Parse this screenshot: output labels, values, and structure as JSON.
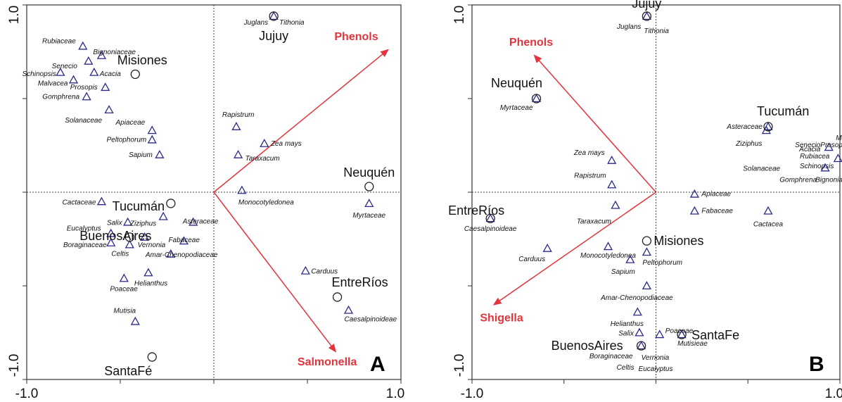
{
  "colors": {
    "arrow": "#e3343c",
    "triangle": "#2a2a8c",
    "frame": "#333333"
  },
  "chart_data": [
    {
      "type": "scatter",
      "panel": "A",
      "xlim": [
        -1.0,
        1.0
      ],
      "ylim": [
        -1.0,
        1.0
      ],
      "x_ticks": [
        "-1.0",
        "1.0"
      ],
      "y_ticks": [
        "1.0",
        "-1.0"
      ],
      "arrows": [
        {
          "name": "Phenols",
          "x": 0.93,
          "y": 0.76
        },
        {
          "name": "Salmonella",
          "x": 0.65,
          "y": -0.85
        }
      ],
      "sites": [
        {
          "name": "Jujuy",
          "x": 0.32,
          "y": 0.94
        },
        {
          "name": "Misiones",
          "x": -0.42,
          "y": 0.63
        },
        {
          "name": "Neuquén",
          "x": 0.83,
          "y": 0.03
        },
        {
          "name": "Tucumán",
          "x": -0.23,
          "y": -0.06
        },
        {
          "name": "BuenosAires",
          "x": -0.45,
          "y": -0.24
        },
        {
          "name": "EntreRíos",
          "x": 0.66,
          "y": -0.56
        },
        {
          "name": "SantaFé",
          "x": -0.33,
          "y": -0.88
        }
      ],
      "taxa": [
        {
          "name": "Juglans",
          "x": 0.32,
          "y": 0.94
        },
        {
          "name": "Tithonia",
          "x": 0.32,
          "y": 0.94
        },
        {
          "name": "Rubiaceae",
          "x": -0.7,
          "y": 0.78
        },
        {
          "name": "Senecio",
          "x": -0.67,
          "y": 0.7
        },
        {
          "name": "Bignoniaceae",
          "x": -0.6,
          "y": 0.73
        },
        {
          "name": "Schinopsis",
          "x": -0.82,
          "y": 0.64
        },
        {
          "name": "Acacia",
          "x": -0.64,
          "y": 0.64
        },
        {
          "name": "Malvacea",
          "x": -0.75,
          "y": 0.6
        },
        {
          "name": "Prosopis",
          "x": -0.58,
          "y": 0.56
        },
        {
          "name": "Gomphrena",
          "x": -0.68,
          "y": 0.51
        },
        {
          "name": "Solanaceae",
          "x": -0.56,
          "y": 0.44
        },
        {
          "name": "Apiaceae",
          "x": -0.33,
          "y": 0.33
        },
        {
          "name": "Peltophorum",
          "x": -0.33,
          "y": 0.28
        },
        {
          "name": "Sapium",
          "x": -0.29,
          "y": 0.2
        },
        {
          "name": "Rapistrum",
          "x": 0.12,
          "y": 0.35
        },
        {
          "name": "Zea mays",
          "x": 0.27,
          "y": 0.26
        },
        {
          "name": "Taraxacum",
          "x": 0.13,
          "y": 0.2
        },
        {
          "name": "Monocotyledonea",
          "x": 0.15,
          "y": 0.01
        },
        {
          "name": "Myrtaceae",
          "x": 0.83,
          "y": -0.06
        },
        {
          "name": "Cactaceae",
          "x": -0.6,
          "y": -0.05
        },
        {
          "name": "Salix",
          "x": -0.46,
          "y": -0.16
        },
        {
          "name": "Ziziphus",
          "x": -0.27,
          "y": -0.13
        },
        {
          "name": "Asteraceae",
          "x": -0.11,
          "y": -0.16
        },
        {
          "name": "Eucalyptus",
          "x": -0.55,
          "y": -0.22
        },
        {
          "name": "Vernonia",
          "x": -0.37,
          "y": -0.24
        },
        {
          "name": "Boraginaceae",
          "x": -0.55,
          "y": -0.27
        },
        {
          "name": "Celtis",
          "x": -0.45,
          "y": -0.28
        },
        {
          "name": "Fabaceae",
          "x": -0.16,
          "y": -0.26
        },
        {
          "name": "Amar-Chenopodiaceae",
          "x": -0.23,
          "y": -0.33
        },
        {
          "name": "Helianthus",
          "x": -0.35,
          "y": -0.43
        },
        {
          "name": "Poaceae",
          "x": -0.48,
          "y": -0.46
        },
        {
          "name": "Carduus",
          "x": 0.49,
          "y": -0.42
        },
        {
          "name": "Caesalpinoideae",
          "x": 0.72,
          "y": -0.63
        },
        {
          "name": "Mutisia",
          "x": -0.42,
          "y": -0.69
        }
      ]
    },
    {
      "type": "scatter",
      "panel": "B",
      "xlim": [
        -1.0,
        1.0
      ],
      "ylim": [
        -1.0,
        1.0
      ],
      "x_ticks": [
        "-1.0",
        "1.0"
      ],
      "y_ticks": [
        "1.0",
        "-1.0"
      ],
      "arrows": [
        {
          "name": "Phenols",
          "x": -0.66,
          "y": 0.73
        },
        {
          "name": "Shigella",
          "x": -0.88,
          "y": -0.6
        }
      ],
      "sites": [
        {
          "name": "Jujuy",
          "x": -0.05,
          "y": 0.94
        },
        {
          "name": "Neuquén",
          "x": -0.65,
          "y": 0.5
        },
        {
          "name": "Tucumán",
          "x": 0.61,
          "y": 0.35
        },
        {
          "name": "EntreRíos",
          "x": -0.9,
          "y": -0.14
        },
        {
          "name": "Misiones",
          "x": -0.05,
          "y": -0.26
        },
        {
          "name": "BuenosAires",
          "x": -0.08,
          "y": -0.82
        },
        {
          "name": "SantaFe",
          "x": 0.14,
          "y": -0.76
        }
      ],
      "taxa": [
        {
          "name": "Juglans",
          "x": -0.05,
          "y": 0.94
        },
        {
          "name": "Tithonia",
          "x": -0.05,
          "y": 0.94
        },
        {
          "name": "Myrtaceae",
          "x": -0.65,
          "y": 0.5
        },
        {
          "name": "Zea mays",
          "x": -0.24,
          "y": 0.17
        },
        {
          "name": "Rapistrum",
          "x": -0.24,
          "y": 0.04
        },
        {
          "name": "Taraxacum",
          "x": -0.22,
          "y": -0.07
        },
        {
          "name": "Caesalpinoideae",
          "x": -0.9,
          "y": -0.14
        },
        {
          "name": "Carduus",
          "x": -0.59,
          "y": -0.3
        },
        {
          "name": "Monocotyledonea",
          "x": -0.26,
          "y": -0.29
        },
        {
          "name": "Peltophorum",
          "x": -0.05,
          "y": -0.32
        },
        {
          "name": "Sapium",
          "x": -0.14,
          "y": -0.36
        },
        {
          "name": "Amar-Chenopodiaceae",
          "x": -0.05,
          "y": -0.5
        },
        {
          "name": "Helianthus",
          "x": -0.1,
          "y": -0.64
        },
        {
          "name": "Salix",
          "x": -0.09,
          "y": -0.75
        },
        {
          "name": "Poaceae",
          "x": 0.02,
          "y": -0.76
        },
        {
          "name": "Mutisieae",
          "x": 0.14,
          "y": -0.76
        },
        {
          "name": "Boraginaceae",
          "x": -0.08,
          "y": -0.82
        },
        {
          "name": "Vernonia",
          "x": -0.08,
          "y": -0.82
        },
        {
          "name": "Celtis",
          "x": -0.08,
          "y": -0.82
        },
        {
          "name": "Eucalyptus",
          "x": -0.08,
          "y": -0.82
        },
        {
          "name": "Asteraceae",
          "x": 0.61,
          "y": 0.35
        },
        {
          "name": "Ziziphus",
          "x": 0.6,
          "y": 0.33
        },
        {
          "name": "Malvaceae",
          "x": 0.94,
          "y": 0.24
        },
        {
          "name": "Acacia",
          "x": 0.94,
          "y": 0.24
        },
        {
          "name": "Prosopis",
          "x": 0.94,
          "y": 0.24
        },
        {
          "name": "Senecio",
          "x": 0.94,
          "y": 0.24
        },
        {
          "name": "Rubiacea",
          "x": 0.99,
          "y": 0.18
        },
        {
          "name": "Schinopsis",
          "x": 0.99,
          "y": 0.18
        },
        {
          "name": "Solanaceae",
          "x": 0.92,
          "y": 0.13
        },
        {
          "name": "Gomphrena",
          "x": 0.92,
          "y": 0.13
        },
        {
          "name": "Bignonia",
          "x": 0.92,
          "y": 0.13
        },
        {
          "name": "Apiaceae",
          "x": 0.21,
          "y": -0.01
        },
        {
          "name": "Fabaceae",
          "x": 0.21,
          "y": -0.1
        },
        {
          "name": "Cactacea",
          "x": 0.61,
          "y": -0.1
        }
      ]
    }
  ],
  "layout_helpers_note": ""
}
